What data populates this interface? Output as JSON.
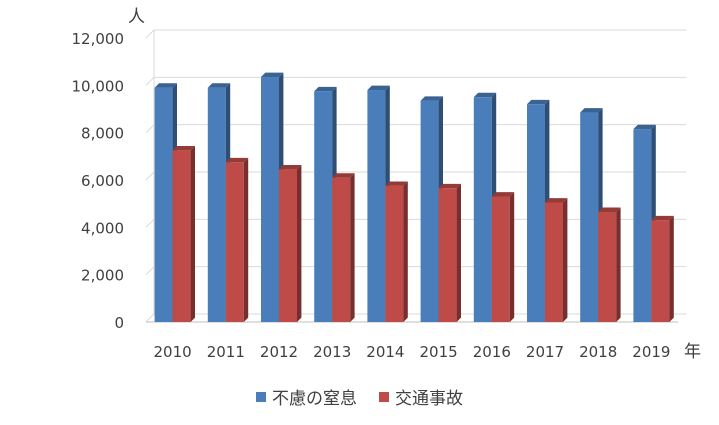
{
  "chart_data": {
    "type": "bar",
    "categories": [
      "2010",
      "2011",
      "2012",
      "2013",
      "2014",
      "2015",
      "2016",
      "2017",
      "2018",
      "2019"
    ],
    "series": [
      {
        "name": "不慮の窒息",
        "color": "#4a7ebb",
        "values": [
          9900,
          9900,
          10350,
          9750,
          9800,
          9350,
          9500,
          9200,
          8850,
          8150
        ]
      },
      {
        "name": "交通事故",
        "color": "#be4b48",
        "values": [
          7250,
          6750,
          6450,
          6100,
          5750,
          5650,
          5300,
          5050,
          4650,
          4300
        ]
      }
    ],
    "yunit": "人",
    "xunit": "年",
    "ylim": [
      0,
      12000
    ],
    "yticks": [
      "0",
      "2,000",
      "4,000",
      "6,000",
      "8,000",
      "10,000",
      "12,000"
    ],
    "grid": true,
    "legend_position": "bottom"
  }
}
